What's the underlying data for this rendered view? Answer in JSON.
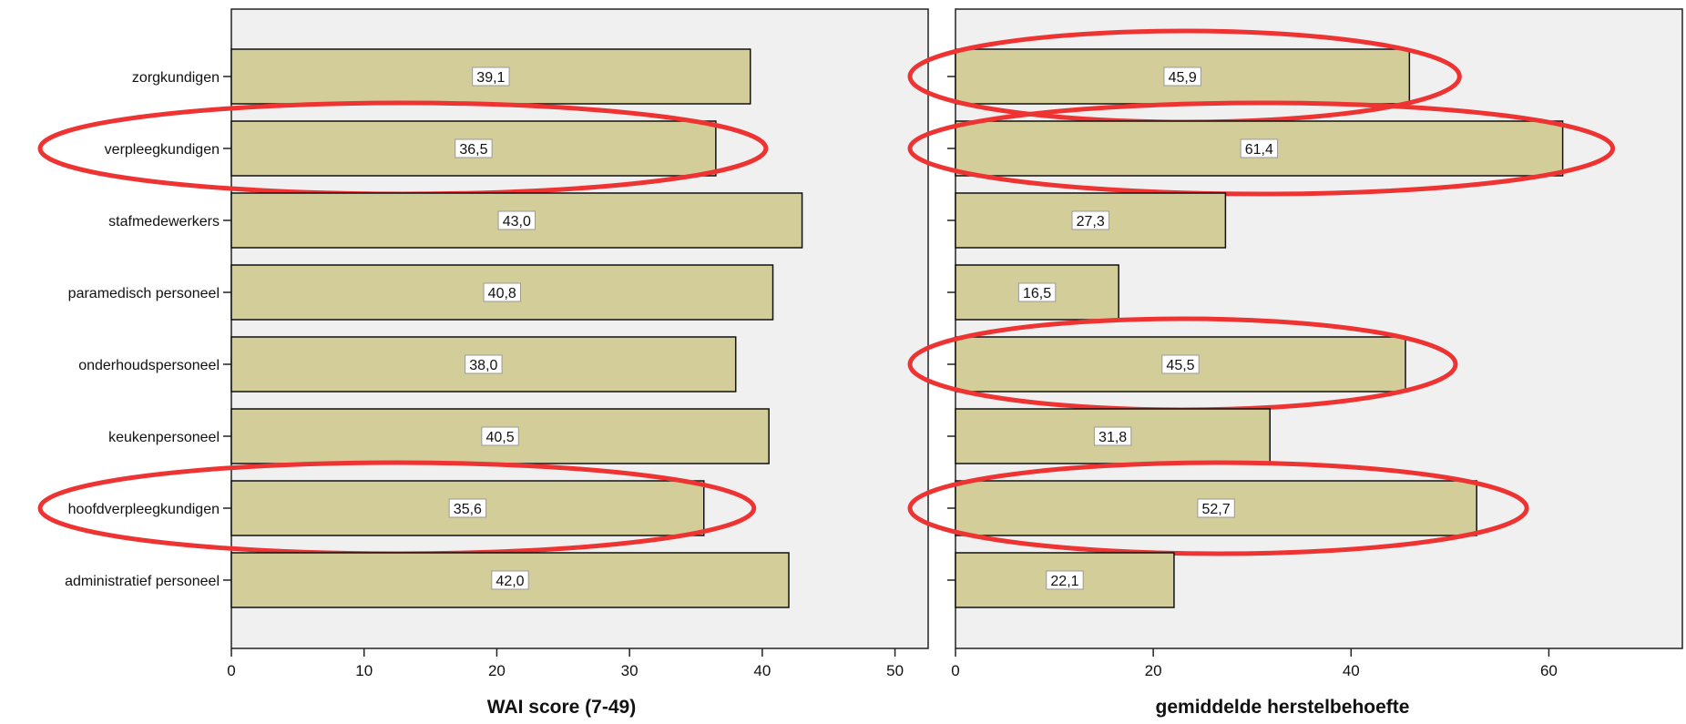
{
  "colors": {
    "bar_fill": "#d3cd99",
    "bar_stroke": "#111111",
    "panel_bg": "#f0f0f0",
    "highlight": "#ee3333",
    "label_box": "#ffffff"
  },
  "chart_data": [
    {
      "type": "bar",
      "orientation": "horizontal",
      "categories": [
        "zorgkundigen",
        "verpleegkundigen",
        "stafmedewerkers",
        "paramedisch personeel",
        "onderhoudspersoneel",
        "keukenpersoneel",
        "hoofdverpleegkundigen",
        "administratief personeel"
      ],
      "values": [
        39.1,
        36.5,
        43.0,
        40.8,
        38.0,
        40.5,
        35.6,
        42.0
      ],
      "data_labels": [
        "39,1",
        "36,5",
        "43,0",
        "40,8",
        "38,0",
        "40,5",
        "35,6",
        "42,0"
      ],
      "xlabel": "WAI score (7-49)",
      "xlim": [
        0,
        52.5
      ],
      "xticks": [
        0,
        10,
        20,
        30,
        40,
        50
      ],
      "highlighted": [
        "verpleegkundigen",
        "hoofdverpleegkundigen"
      ]
    },
    {
      "type": "bar",
      "orientation": "horizontal",
      "categories": [
        "zorgkundigen",
        "verpleegkundigen",
        "stafmedewerkers",
        "paramedisch personeel",
        "onderhoudspersoneel",
        "keukenpersoneel",
        "hoofdverpleegkundigen",
        "administratief personeel"
      ],
      "values": [
        45.9,
        61.4,
        27.3,
        16.5,
        45.5,
        31.8,
        52.7,
        22.1
      ],
      "data_labels": [
        "45,9",
        "61,4",
        "27,3",
        "16,5",
        "45,5",
        "31,8",
        "52,7",
        "22,1"
      ],
      "xlabel": "gemiddelde herstelbehoefte",
      "xlim": [
        0,
        73.5
      ],
      "xticks": [
        0,
        20,
        40,
        60
      ],
      "highlighted": [
        "zorgkundigen",
        "verpleegkundigen",
        "onderhoudspersoneel",
        "hoofdverpleegkundigen"
      ]
    }
  ]
}
